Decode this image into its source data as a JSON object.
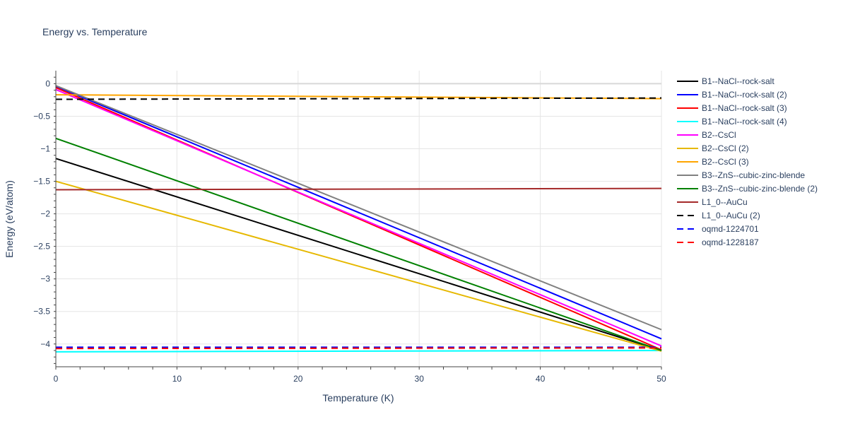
{
  "chart_data": {
    "type": "line",
    "title": "Energy vs. Temperature",
    "xlabel": "Temperature (K)",
    "ylabel": "Energy (eV/atom)",
    "xlim": [
      0,
      50
    ],
    "ylim": [
      -4.35,
      0.2
    ],
    "x_ticks": [
      0,
      10,
      20,
      30,
      40,
      50
    ],
    "y_ticks": [
      0,
      -0.5,
      -1,
      -1.5,
      -2,
      -2.5,
      -3,
      -3.5,
      -4
    ],
    "x_tick_labels": [
      "0",
      "10",
      "20",
      "30",
      "40",
      "50"
    ],
    "y_tick_labels": [
      "0",
      "−0.5",
      "−1",
      "−1.5",
      "−2",
      "−2.5",
      "−3",
      "−3.5",
      "−4"
    ],
    "grid": true,
    "legend_position": "right",
    "x": [
      0,
      50
    ],
    "series": [
      {
        "name": "B1--NaCl--rock-salt",
        "color": "#000000",
        "dash": "solid",
        "values": [
          -1.15,
          -4.1
        ]
      },
      {
        "name": "B1--NaCl--rock-salt (2)",
        "color": "#0000ff",
        "dash": "solid",
        "values": [
          -0.04,
          -3.92
        ]
      },
      {
        "name": "B1--NaCl--rock-salt (3)",
        "color": "#ff0000",
        "dash": "solid",
        "values": [
          -0.06,
          -4.09
        ]
      },
      {
        "name": "B1--NaCl--rock-salt (4)",
        "color": "#00ffff",
        "dash": "solid",
        "values": [
          -4.12,
          -4.1
        ]
      },
      {
        "name": "B2--CsCl",
        "color": "#ff00ff",
        "dash": "solid",
        "values": [
          -0.09,
          -4.03
        ]
      },
      {
        "name": "B2--CsCl (2)",
        "color": "#e6b800",
        "dash": "solid",
        "values": [
          -1.5,
          -4.11
        ]
      },
      {
        "name": "B2--CsCl (3)",
        "color": "#ffa500",
        "dash": "solid",
        "values": [
          -0.17,
          -0.23
        ]
      },
      {
        "name": "B3--ZnS--cubic-zinc-blende",
        "color": "#808080",
        "dash": "solid",
        "values": [
          -0.03,
          -3.78
        ]
      },
      {
        "name": "B3--ZnS--cubic-zinc-blende (2)",
        "color": "#008000",
        "dash": "solid",
        "values": [
          -0.84,
          -4.1
        ]
      },
      {
        "name": "L1_0--AuCu",
        "color": "#a52a2a",
        "dash": "solid",
        "values": [
          -1.63,
          -1.61
        ]
      },
      {
        "name": "L1_0--AuCu (2)",
        "color": "#000000",
        "dash": "dash",
        "values": [
          -0.24,
          -0.22
        ]
      },
      {
        "name": "oqmd-1224701",
        "color": "#0000ff",
        "dash": "dash",
        "values": [
          -4.05,
          -4.05
        ]
      },
      {
        "name": "oqmd-1228187",
        "color": "#ff0000",
        "dash": "dash",
        "values": [
          -4.07,
          -4.06
        ]
      }
    ]
  }
}
